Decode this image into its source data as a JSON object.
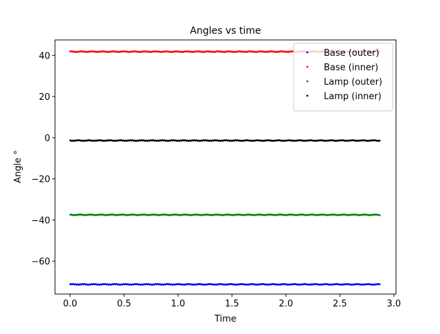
{
  "chart_data": {
    "type": "scatter",
    "title": "Angles vs time",
    "xlabel": "Time",
    "ylabel": "Angle °",
    "xlim": [
      -0.14,
      3.02
    ],
    "ylim": [
      -76,
      47.5
    ],
    "xticks": [
      0.0,
      0.5,
      1.0,
      1.5,
      2.0,
      2.5,
      3.0
    ],
    "xtick_labels": [
      "0.0",
      "0.5",
      "1.0",
      "1.5",
      "2.0",
      "2.5",
      "3.0"
    ],
    "yticks": [
      -60,
      -40,
      -20,
      0,
      20,
      40
    ],
    "ytick_labels": [
      "−60",
      "−40",
      "−20",
      "0",
      "20",
      "40"
    ],
    "grid": false,
    "legend_position": "top-right",
    "x_range": [
      0.0,
      2.87
    ],
    "series": [
      {
        "name": "Base (outer)",
        "color": "#0000ff",
        "approx_value": -71.3
      },
      {
        "name": "Base (inner)",
        "color": "#ff0000",
        "approx_value": 41.8
      },
      {
        "name": "Lamp (outer)",
        "color": "#008000",
        "approx_value": -37.5
      },
      {
        "name": "Lamp (inner)",
        "color": "#000000",
        "approx_value": -1.4
      }
    ]
  }
}
